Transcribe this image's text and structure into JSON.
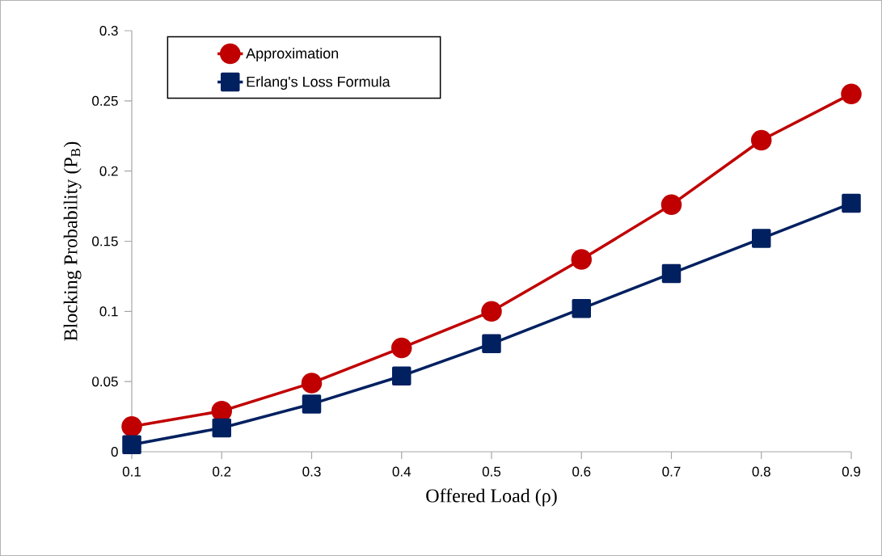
{
  "chart_data": {
    "type": "line",
    "xlabel": "Offered Load (ρ)",
    "ylabel": "Blocking Probability (P$_{B}$)",
    "x": [
      0.1,
      0.2,
      0.3,
      0.4,
      0.5,
      0.6,
      0.7,
      0.8,
      0.9
    ],
    "series": [
      {
        "name": "Approximation",
        "color": "#c00000",
        "marker": "circle",
        "values": [
          0.018,
          0.029,
          0.049,
          0.074,
          0.1,
          0.137,
          0.176,
          0.222,
          0.255
        ]
      },
      {
        "name": "Erlang's Loss Formula",
        "color": "#002060",
        "marker": "square",
        "values": [
          0.005,
          0.017,
          0.034,
          0.054,
          0.077,
          0.102,
          0.127,
          0.152,
          0.177
        ]
      }
    ],
    "xlim": [
      0.1,
      0.9
    ],
    "ylim": [
      0,
      0.3
    ],
    "xticks": [
      0.1,
      0.2,
      0.3,
      0.4,
      0.5,
      0.6,
      0.7,
      0.8,
      0.9
    ],
    "yticks": [
      0,
      0.05,
      0.1,
      0.15,
      0.2,
      0.25,
      0.3
    ],
    "legend": "top left",
    "line_style": "solid"
  }
}
